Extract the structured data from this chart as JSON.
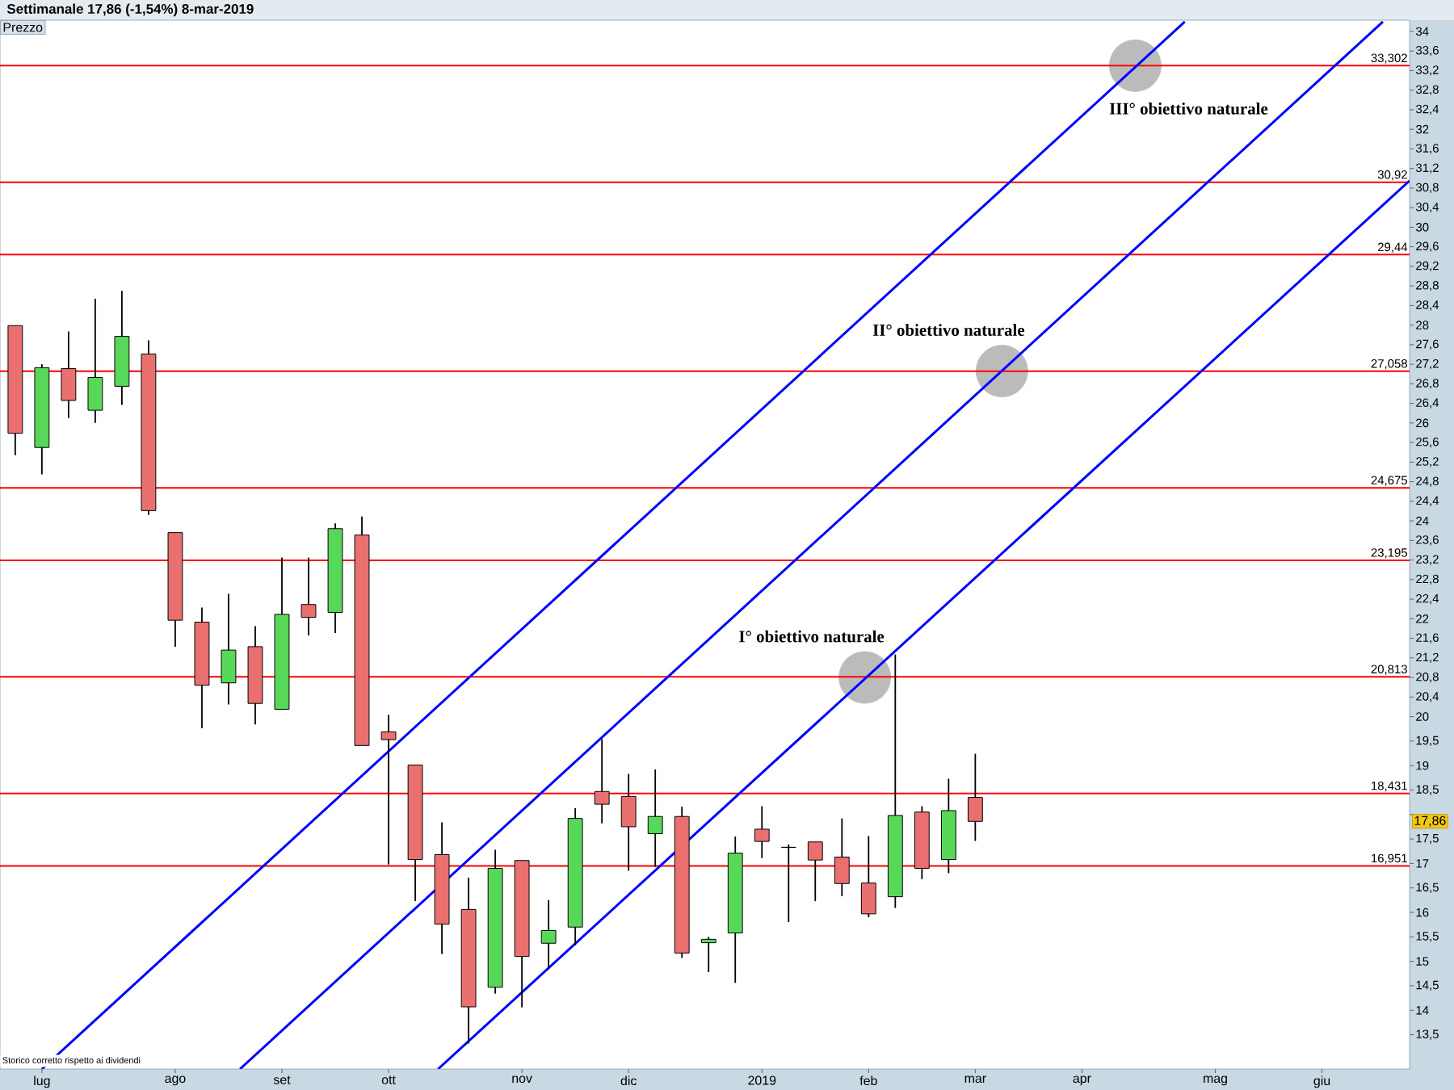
{
  "chart_data": {
    "type": "candlestick",
    "title": "Settimanale 17,86 (-1,54%) 8-mar-2019",
    "x": [
      "2018-06-25",
      "2018-07-02",
      "2018-07-09",
      "2018-07-16",
      "2018-07-23",
      "2018-07-30",
      "2018-08-06",
      "2018-08-13",
      "2018-08-20",
      "2018-08-27",
      "2018-09-03",
      "2018-09-10",
      "2018-09-17",
      "2018-09-24",
      "2018-10-01",
      "2018-10-08",
      "2018-10-15",
      "2018-10-22",
      "2018-10-29",
      "2018-11-05",
      "2018-11-12",
      "2018-11-19",
      "2018-11-26",
      "2018-12-03",
      "2018-12-10",
      "2018-12-17",
      "2018-12-24",
      "2018-12-31",
      "2019-01-07",
      "2019-01-14",
      "2019-01-21",
      "2019-01-28",
      "2019-02-04",
      "2019-02-11",
      "2019-02-18",
      "2019-02-25",
      "2019-03-04"
    ],
    "ohlc": [
      [
        27.99,
        27.99,
        25.34,
        25.79
      ],
      [
        25.5,
        27.2,
        24.95,
        27.13
      ],
      [
        27.11,
        27.87,
        26.1,
        26.46
      ],
      [
        26.26,
        28.54,
        26.0,
        26.93
      ],
      [
        26.75,
        28.7,
        26.37,
        27.77
      ],
      [
        27.41,
        27.69,
        24.12,
        24.21
      ],
      [
        23.76,
        23.76,
        21.43,
        21.97
      ],
      [
        21.93,
        22.23,
        19.76,
        20.64
      ],
      [
        20.69,
        22.51,
        20.25,
        21.36
      ],
      [
        21.43,
        21.85,
        19.84,
        20.27
      ],
      [
        20.15,
        23.25,
        20.15,
        22.09
      ],
      [
        22.29,
        23.25,
        21.66,
        22.03
      ],
      [
        22.13,
        23.95,
        21.71,
        23.84
      ],
      [
        23.71,
        24.09,
        19.41,
        19.41
      ],
      [
        19.69,
        20.04,
        16.98,
        19.53
      ],
      [
        19.01,
        19.01,
        16.23,
        17.08
      ],
      [
        17.18,
        17.84,
        15.15,
        15.76
      ],
      [
        16.06,
        16.71,
        13.32,
        14.07
      ],
      [
        14.47,
        17.28,
        14.34,
        16.9
      ],
      [
        17.06,
        17.06,
        14.06,
        15.1
      ],
      [
        15.37,
        16.25,
        14.84,
        15.63
      ],
      [
        15.7,
        18.13,
        15.33,
        17.92
      ],
      [
        18.47,
        19.54,
        17.82,
        18.21
      ],
      [
        18.37,
        18.83,
        16.85,
        17.75
      ],
      [
        17.61,
        18.92,
        16.93,
        17.96
      ],
      [
        17.96,
        18.16,
        15.07,
        15.17
      ],
      [
        15.38,
        15.5,
        14.78,
        15.45
      ],
      [
        15.58,
        17.55,
        14.56,
        17.21
      ],
      [
        17.7,
        18.17,
        17.11,
        17.45
      ],
      [
        17.33,
        17.39,
        15.8,
        17.33
      ],
      [
        17.44,
        17.44,
        16.23,
        17.07
      ],
      [
        17.13,
        17.92,
        16.33,
        16.59
      ],
      [
        16.6,
        17.56,
        15.9,
        15.97
      ],
      [
        16.32,
        21.27,
        16.09,
        17.98
      ],
      [
        18.05,
        18.17,
        16.68,
        16.9
      ],
      [
        17.08,
        18.73,
        16.8,
        18.08
      ],
      [
        18.35,
        19.24,
        17.46,
        17.86
      ]
    ],
    "colors": [
      "#ea7070",
      "#58d858",
      "#ea7070",
      "#58d858",
      "#58d858",
      "#ea7070",
      "#ea7070",
      "#ea7070",
      "#58d858",
      "#ea7070",
      "#58d858",
      "#ea7070",
      "#58d858",
      "#ea7070",
      "#ea7070",
      "#ea7070",
      "#ea7070",
      "#ea7070",
      "#58d858",
      "#ea7070",
      "#58d858",
      "#58d858",
      "#ea7070",
      "#ea7070",
      "#58d858",
      "#ea7070",
      "#58d858",
      "#58d858",
      "#ea7070",
      "#000000",
      "#ea7070",
      "#ea7070",
      "#ea7070",
      "#58d858",
      "#ea7070",
      "#58d858",
      "#ea7070"
    ],
    "series": [
      {
        "type": "scatter",
        "color": "#bbbbbb",
        "x": [
          "2019-02-03",
          "2019-03-11",
          "2019-04-15"
        ],
        "values": [
          20.8,
          27.06,
          33.3
        ]
      },
      {
        "type": "line",
        "color": "#0000ff",
        "x": [
          "2018-07-02",
          "2019-04-28"
        ],
        "values": [
          12.8,
          34.2
        ]
      },
      {
        "type": "line",
        "color": "#0000ff",
        "x": [
          "2018-08-23",
          "2019-06-19"
        ],
        "values": [
          12.8,
          34.2
        ]
      },
      {
        "type": "line",
        "color": "#0000ff",
        "x": [
          "2018-10-14",
          "2019-06-26"
        ],
        "values": [
          12.8,
          30.95
        ]
      }
    ],
    "xlim": [
      "2018-06-21",
      "2019-06-26"
    ],
    "ylim": [
      12.8,
      34.23
    ],
    "xticks": [
      {
        "value": "2018-07-02",
        "label": "lug"
      },
      {
        "value": "2018-08-06",
        "label": "ago"
      },
      {
        "value": "2018-09-03",
        "label": "set"
      },
      {
        "value": "2018-10-01",
        "label": "ott"
      },
      {
        "value": "2018-11-05",
        "label": "nov"
      },
      {
        "value": "2018-12-03",
        "label": "dic"
      },
      {
        "value": "2019-01-07",
        "label": "2019"
      },
      {
        "value": "2019-02-04",
        "label": "feb"
      },
      {
        "value": "2019-03-04",
        "label": "mar"
      },
      {
        "value": "2019-04-01",
        "label": "apr"
      },
      {
        "value": "2019-05-06",
        "label": "mag"
      },
      {
        "value": "2019-06-03",
        "label": "giu"
      }
    ],
    "yticks": [
      {
        "value": 13.5,
        "label": "13,5"
      },
      14,
      {
        "value": 14.5,
        "label": "14,5"
      },
      15,
      {
        "value": 15.5,
        "label": "15,5"
      },
      16,
      {
        "value": 16.5,
        "label": "16,5"
      },
      17,
      {
        "value": 17.5,
        "label": "17,5"
      },
      {
        "value": 18,
        "label": null
      },
      {
        "value": 18.5,
        "label": "18,5"
      },
      19,
      {
        "value": 19.5,
        "label": "19,5"
      },
      20,
      {
        "value": 20.4,
        "label": "20,4"
      },
      {
        "value": 20.8,
        "label": "20,8"
      },
      {
        "value": 21.2,
        "label": "21,2"
      },
      {
        "value": 21.6,
        "label": "21,6"
      },
      22,
      {
        "value": 22.4,
        "label": "22,4"
      },
      {
        "value": 22.8,
        "label": "22,8"
      },
      {
        "value": 23.2,
        "label": "23,2"
      },
      {
        "value": 23.6,
        "label": "23,6"
      },
      24,
      {
        "value": 24.4,
        "label": "24,4"
      },
      {
        "value": 24.8,
        "label": "24,8"
      },
      {
        "value": 25.2,
        "label": "25,2"
      },
      {
        "value": 25.6,
        "label": "25,6"
      },
      26,
      {
        "value": 26.4,
        "label": "26,4"
      },
      {
        "value": 26.8,
        "label": "26,8"
      },
      {
        "value": 27.2,
        "label": "27,2"
      },
      {
        "value": 27.6,
        "label": "27,6"
      },
      28,
      {
        "value": 28.4,
        "label": "28,4"
      },
      {
        "value": 28.8,
        "label": "28,8"
      },
      {
        "value": 29.2,
        "label": "29,2"
      },
      {
        "value": 29.6,
        "label": "29,6"
      },
      30,
      {
        "value": 30.4,
        "label": "30,4"
      },
      {
        "value": 30.8,
        "label": "30,8"
      },
      {
        "value": 31.2,
        "label": "31,2"
      },
      {
        "value": 31.6,
        "label": "31,6"
      },
      32,
      {
        "value": 32.4,
        "label": "32,4"
      },
      {
        "value": 32.8,
        "label": "32,8"
      },
      {
        "value": 33.2,
        "label": "33,2"
      },
      {
        "value": 33.6,
        "label": "33,6"
      },
      34
    ],
    "ref_lines": [
      {
        "axis": "y",
        "value": 33.302,
        "label": "33,302",
        "color": "#ff0000"
      },
      {
        "axis": "y",
        "value": 30.92,
        "label": "30,92",
        "color": "#ff0000"
      },
      {
        "axis": "y",
        "value": 29.44,
        "label": "29,44",
        "color": "#ff0000"
      },
      {
        "axis": "y",
        "value": 27.058,
        "label": "27,058",
        "color": "#ff0000"
      },
      {
        "axis": "y",
        "value": 24.675,
        "label": "24,675",
        "color": "#ff0000"
      },
      {
        "axis": "y",
        "value": 23.195,
        "label": "23,195",
        "color": "#ff0000"
      },
      {
        "axis": "y",
        "value": 20.813,
        "label": "20,813",
        "color": "#ff0000"
      },
      {
        "axis": "y",
        "value": 18.431,
        "label": "18,431",
        "color": "#ff0000"
      },
      {
        "axis": "y",
        "value": 16.951,
        "label": "16,951",
        "color": "#ff0000"
      }
    ],
    "annotations": [
      "Prezzo",
      {
        "text": "I° obiettivo naturale",
        "x": "2019-02-03",
        "y": 20.8
      },
      {
        "text": "II° obiettivo naturale",
        "x": "2019-03-11",
        "y": 27.06
      },
      {
        "text": "III° obiettivo naturale",
        "x": "2019-04-15",
        "y": 33.3
      },
      "17,86",
      "Storico corretto rispetto ai dividendi"
    ]
  }
}
